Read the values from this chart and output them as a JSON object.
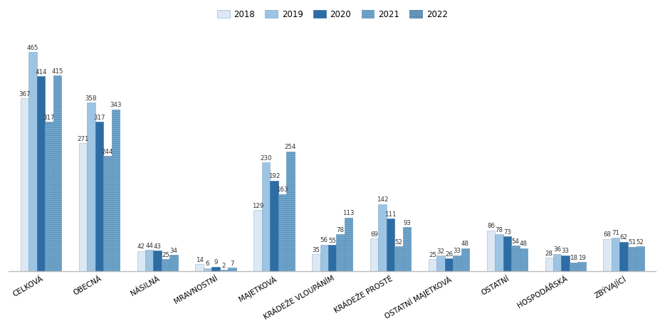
{
  "categories": [
    "CELKOVÁ",
    "OBECNÁ",
    "NÁSILNÁ",
    "MRAVNOSTNÍ",
    "MAJETKOVÁ",
    "KRÁDEŽE VLOUPÁNÍM",
    "KRÁDEŽE PROSTÉ",
    "OSTATNÍ MAJETKOVÁ",
    "OSTATNÍ",
    "HOSPODÁŘSKÁ",
    "ZBÝVAJÍCÍ"
  ],
  "years": [
    "2018",
    "2019",
    "2020",
    "2021",
    "2022"
  ],
  "values": {
    "2018": [
      367,
      271,
      42,
      14,
      129,
      35,
      69,
      25,
      86,
      28,
      68
    ],
    "2019": [
      465,
      358,
      44,
      6,
      230,
      56,
      142,
      32,
      78,
      36,
      71
    ],
    "2020": [
      414,
      317,
      43,
      9,
      192,
      55,
      111,
      26,
      73,
      33,
      62
    ],
    "2021": [
      317,
      244,
      25,
      2,
      163,
      78,
      52,
      33,
      54,
      18,
      51
    ],
    "2022": [
      415,
      343,
      34,
      7,
      254,
      113,
      93,
      48,
      48,
      19,
      52
    ]
  },
  "colors": {
    "2018": "#dce9f5",
    "2019": "#9ec4e4",
    "2020": "#2e6da4",
    "2021": "#7bafd4",
    "2022": "#7bafd4"
  },
  "hatches": {
    "2018": "",
    "2019": "",
    "2020": "",
    "2021": "---",
    "2022": "---"
  },
  "bar_width": 0.14,
  "figsize": [
    9.28,
    4.58
  ],
  "dpi": 100,
  "value_fontsize": 6.2,
  "legend_fontsize": 8.5,
  "background_color": "#ffffff",
  "ylim": [
    0,
    510
  ]
}
